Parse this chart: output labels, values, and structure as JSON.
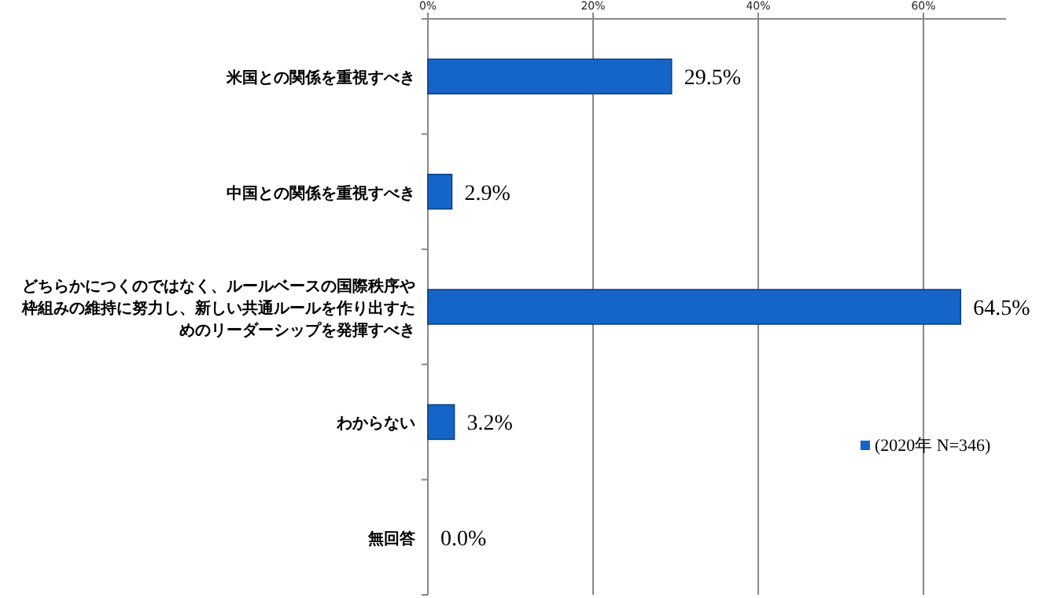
{
  "chart_data": {
    "type": "bar",
    "orientation": "horizontal",
    "categories": [
      "米国との関係を重視すべき",
      "中国との関係を重視すべき",
      "どちらかにつくのではなく、ルールベースの国際秩序や枠組みの維持に努力し、新しい共通ルールを作り出すためのリーダーシップを発揮すべき",
      "わからない",
      "無回答"
    ],
    "series": [
      {
        "name": "(2020年 N=346)",
        "color": "#1565c8",
        "values": [
          29.5,
          2.9,
          64.5,
          3.2,
          0.0
        ]
      }
    ],
    "xlim": [
      0,
      70
    ],
    "xticks": [
      {
        "value": 0,
        "label": "0%"
      },
      {
        "value": 20,
        "label": "20%"
      },
      {
        "value": 40,
        "label": "40%"
      },
      {
        "value": 60,
        "label": "60%"
      }
    ],
    "value_labels": [
      "29.5%",
      "2.9%",
      "64.5%",
      "3.2%",
      "0.0%"
    ],
    "grid": "x",
    "legend": "right"
  }
}
